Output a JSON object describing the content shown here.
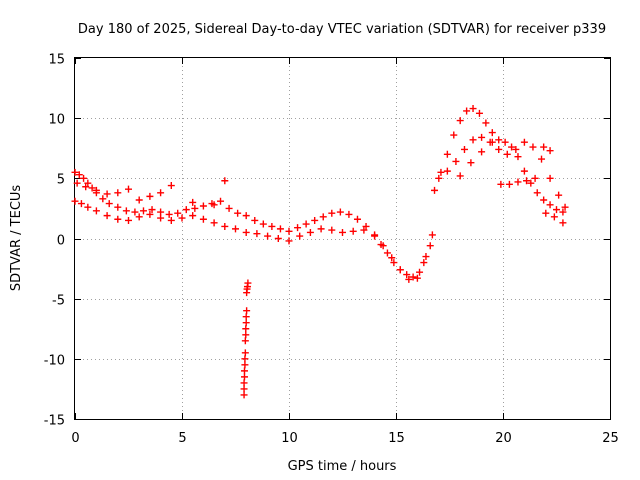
{
  "chart_data": {
    "type": "scatter",
    "title": "Day 180 of 2025, Sidereal Day-to-day VTEC variation (SDTVAR) for receiver p339",
    "xlabel": "GPS time / hours",
    "ylabel": "SDTVAR / TECUs",
    "xlim": [
      0,
      25
    ],
    "ylim": [
      -15,
      15
    ],
    "xticks": [
      0,
      5,
      10,
      15,
      20,
      25
    ],
    "yticks": [
      -15,
      -10,
      -5,
      0,
      5,
      10,
      15
    ],
    "xtick_labels": [
      "0",
      "5",
      "10",
      "15",
      "20",
      "25"
    ],
    "ytick_labels": [
      "-15",
      "-10",
      "-5",
      "0",
      "5",
      "10",
      "15"
    ],
    "grid": true,
    "legend": "none",
    "marker": "+",
    "color": "#ff0000",
    "series": [
      {
        "name": "sdtvar_track_a",
        "x": [
          0.0,
          0.2,
          0.4,
          0.6,
          0.8,
          1.0,
          1.3,
          1.6,
          2.0,
          2.4,
          2.8,
          3.2,
          3.6,
          4.0,
          4.4,
          4.8,
          5.2,
          5.6,
          6.0,
          6.4,
          6.8,
          7.2,
          7.6,
          8.0,
          8.4,
          8.8,
          9.2,
          9.6,
          10.0,
          10.4,
          10.8,
          11.2,
          11.6,
          12.0,
          12.4,
          12.8,
          13.2,
          13.6,
          14.0,
          14.3,
          14.6,
          14.9,
          15.2,
          15.5,
          15.8,
          16.1,
          16.4,
          16.7
        ],
        "y": [
          5.5,
          5.3,
          5.0,
          4.6,
          4.2,
          3.8,
          3.3,
          2.9,
          2.6,
          2.3,
          2.2,
          2.3,
          2.4,
          2.2,
          2.0,
          2.1,
          2.4,
          2.5,
          2.7,
          2.9,
          3.1,
          2.5,
          2.1,
          1.9,
          1.5,
          1.2,
          1.0,
          0.8,
          0.6,
          0.9,
          1.2,
          1.5,
          1.8,
          2.1,
          2.2,
          2.0,
          1.6,
          1.0,
          0.2,
          -0.5,
          -1.2,
          -2.0,
          -2.6,
          -3.0,
          -3.2,
          -2.8,
          -1.5,
          0.3
        ]
      },
      {
        "name": "sdtvar_track_b",
        "x": [
          0.0,
          0.3,
          0.6,
          1.0,
          1.5,
          2.0,
          2.5,
          3.0,
          3.5,
          4.0,
          4.5,
          5.0,
          5.5,
          6.0,
          6.5,
          7.0,
          7.5,
          8.0,
          8.5,
          9.0,
          9.5,
          10.0,
          10.5,
          11.0,
          11.5,
          12.0,
          12.5,
          13.0,
          13.5,
          14.0,
          14.4,
          14.8,
          15.2,
          15.6,
          16.0,
          16.3,
          16.6
        ],
        "y": [
          3.1,
          2.9,
          2.6,
          2.3,
          1.9,
          1.6,
          1.5,
          1.8,
          2.0,
          1.7,
          1.5,
          1.7,
          1.9,
          1.6,
          1.3,
          1.0,
          0.8,
          0.5,
          0.4,
          0.2,
          0.0,
          -0.2,
          0.2,
          0.5,
          0.8,
          0.7,
          0.5,
          0.6,
          0.7,
          0.3,
          -0.6,
          -1.6,
          -2.6,
          -3.4,
          -3.3,
          -2.0,
          -0.6
        ]
      },
      {
        "name": "sdtvar_track_c",
        "x": [
          0.1,
          0.5,
          1.0,
          1.5,
          2.0,
          2.5,
          3.0,
          3.5,
          4.0,
          4.5,
          5.5,
          6.5,
          7.0
        ],
        "y": [
          4.6,
          4.3,
          4.0,
          3.7,
          3.8,
          4.1,
          3.2,
          3.5,
          3.8,
          4.4,
          3.0,
          2.8,
          4.8
        ]
      },
      {
        "name": "sdtvar_track_d",
        "x": [
          16.8,
          17.1,
          17.4,
          17.7,
          18.0,
          18.3,
          18.6,
          18.9,
          19.2,
          19.5,
          19.8,
          20.1,
          20.4,
          20.7,
          21.0,
          21.3,
          21.6,
          21.9,
          22.2,
          22.5,
          22.8
        ],
        "y": [
          4.0,
          5.5,
          7.0,
          8.6,
          9.8,
          10.6,
          10.8,
          10.4,
          9.6,
          8.8,
          8.2,
          8.0,
          7.6,
          6.8,
          5.6,
          4.6,
          3.8,
          3.2,
          2.8,
          2.4,
          2.2
        ]
      },
      {
        "name": "sdtvar_track_e",
        "x": [
          17.0,
          17.4,
          17.8,
          18.2,
          18.6,
          19.0,
          19.4,
          19.8,
          20.2,
          20.6,
          21.0,
          21.4,
          21.8,
          22.2,
          22.6,
          22.9
        ],
        "y": [
          5.0,
          5.6,
          6.4,
          7.4,
          8.2,
          8.4,
          8.0,
          7.4,
          7.0,
          7.4,
          8.0,
          7.6,
          6.6,
          5.0,
          3.6,
          2.6
        ]
      },
      {
        "name": "sdtvar_track_f",
        "x": [
          18.0,
          18.5,
          19.0,
          19.5,
          19.9,
          20.3,
          20.7,
          21.1,
          21.5,
          21.9,
          22.2
        ],
        "y": [
          5.2,
          6.3,
          7.2,
          8.0,
          4.5,
          4.5,
          4.7,
          4.8,
          5.0,
          7.6,
          7.3
        ]
      },
      {
        "name": "sdtvar_track_g",
        "x": [
          22.0,
          22.4,
          22.8
        ],
        "y": [
          2.1,
          1.8,
          1.3
        ]
      },
      {
        "name": "sdtvar_dip_near_8h",
        "x": [
          7.9,
          7.9,
          7.9,
          7.92,
          7.92,
          7.94,
          7.94,
          7.96,
          7.96,
          7.98,
          7.98,
          8.0,
          8.0,
          8.02,
          8.02,
          8.04,
          8.06,
          8.08
        ],
        "y": [
          -13.0,
          -12.5,
          -12.0,
          -11.5,
          -11.0,
          -10.5,
          -10.0,
          -9.5,
          -8.5,
          -8.0,
          -7.5,
          -7.0,
          -6.5,
          -6.0,
          -4.5,
          -4.2,
          -4.0,
          -3.7
        ]
      }
    ]
  }
}
